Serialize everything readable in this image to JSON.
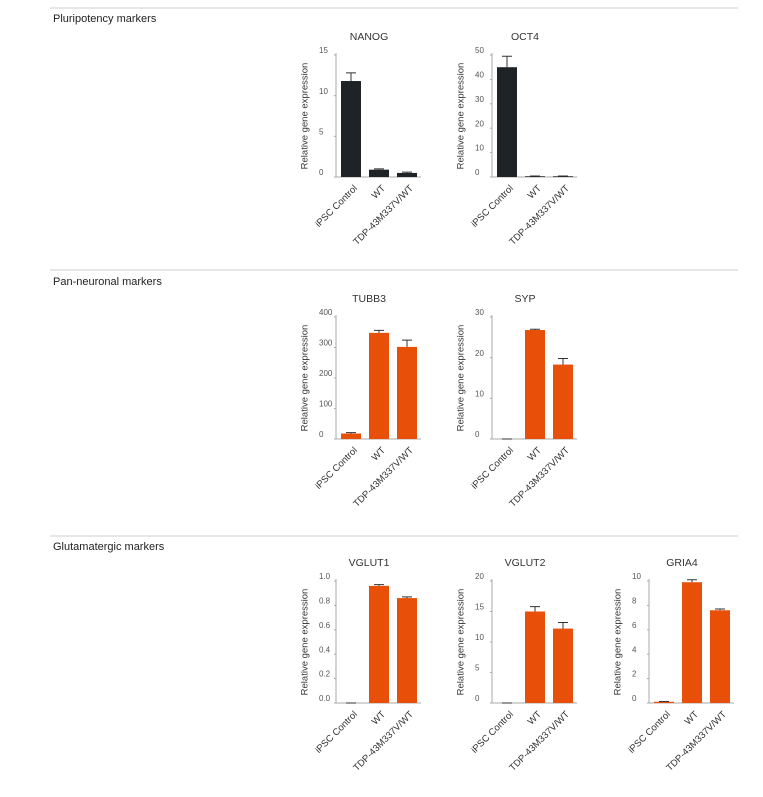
{
  "sections": [
    {
      "title": "Pluripotency markers"
    },
    {
      "title": "Pan-neuronal markers"
    },
    {
      "title": "Glutamatergic markers"
    }
  ],
  "chart_data": [
    {
      "type": "bar",
      "title": "NANOG",
      "ylabel": "Relative gene expression",
      "categories": [
        "iPSC Control",
        "WT",
        "TDP-43M337V/WT"
      ],
      "values": [
        11.8,
        0.9,
        0.5
      ],
      "errors": [
        1.0,
        0.1,
        0.1
      ],
      "color": "#1e2327",
      "ylim": [
        0,
        15
      ],
      "yticks": [
        0,
        5,
        10,
        15
      ]
    },
    {
      "type": "bar",
      "title": "OCT4",
      "ylabel": "Relative gene expression",
      "categories": [
        "iPSC Control",
        "WT",
        "TDP-43M337V/WT"
      ],
      "values": [
        45,
        0.3,
        0.3
      ],
      "errors": [
        4.5,
        0.1,
        0.1
      ],
      "color": "#1e2327",
      "ylim": [
        0,
        50
      ],
      "yticks": [
        0,
        10,
        20,
        30,
        40,
        50
      ]
    },
    {
      "type": "bar",
      "title": "TUBB3",
      "ylabel": "Relative gene expression",
      "categories": [
        "iPSC Control",
        "WT",
        "TDP-43M337V/WT"
      ],
      "values": [
        18,
        348,
        302
      ],
      "errors": [
        3,
        8,
        22
      ],
      "color": "#e8500a",
      "ylim": [
        0,
        400
      ],
      "yticks": [
        0,
        100,
        200,
        300,
        400
      ]
    },
    {
      "type": "bar",
      "title": "SYP",
      "ylabel": "Relative gene expression",
      "categories": [
        "iPSC Control",
        "WT",
        "TDP-43M337V/WT"
      ],
      "values": [
        0,
        26.8,
        18.3
      ],
      "errors": [
        0,
        0.2,
        1.5
      ],
      "color": "#e8500a",
      "ylim": [
        0,
        30
      ],
      "yticks": [
        0,
        10,
        20,
        30
      ]
    },
    {
      "type": "bar",
      "title": "VGLUT1",
      "ylabel": "Relative gene expression",
      "categories": [
        "iPSC Control",
        "WT",
        "TDP-43M337V/WT"
      ],
      "values": [
        0,
        0.96,
        0.86
      ],
      "errors": [
        0,
        0.01,
        0.01
      ],
      "color": "#e8500a",
      "ylim": [
        0,
        1
      ],
      "yticks": [
        {
          "value": 0,
          "label": "0.0"
        },
        0.2,
        0.4,
        0.6,
        0.8,
        {
          "value": 1,
          "label": "1.0"
        }
      ]
    },
    {
      "type": "bar",
      "title": "VGLUT2",
      "ylabel": "Relative gene expression",
      "categories": [
        "iPSC Control",
        "WT",
        "TDP-43M337V/WT"
      ],
      "values": [
        0,
        15,
        12.2
      ],
      "errors": [
        0,
        0.8,
        1.0
      ],
      "color": "#e8500a",
      "ylim": [
        0,
        20
      ],
      "yticks": [
        0,
        5,
        10,
        15,
        20
      ]
    },
    {
      "type": "bar",
      "title": "GRIA4",
      "ylabel": "Relative gene expression",
      "categories": [
        "iPSC Control",
        "WT",
        "TDP-43M337V/WT"
      ],
      "values": [
        0.1,
        9.9,
        7.6
      ],
      "errors": [
        0.02,
        0.2,
        0.1
      ],
      "color": "#e8500a",
      "ylim": [
        0,
        10
      ],
      "yticks": [
        0,
        2,
        4,
        6,
        8,
        10
      ]
    }
  ]
}
